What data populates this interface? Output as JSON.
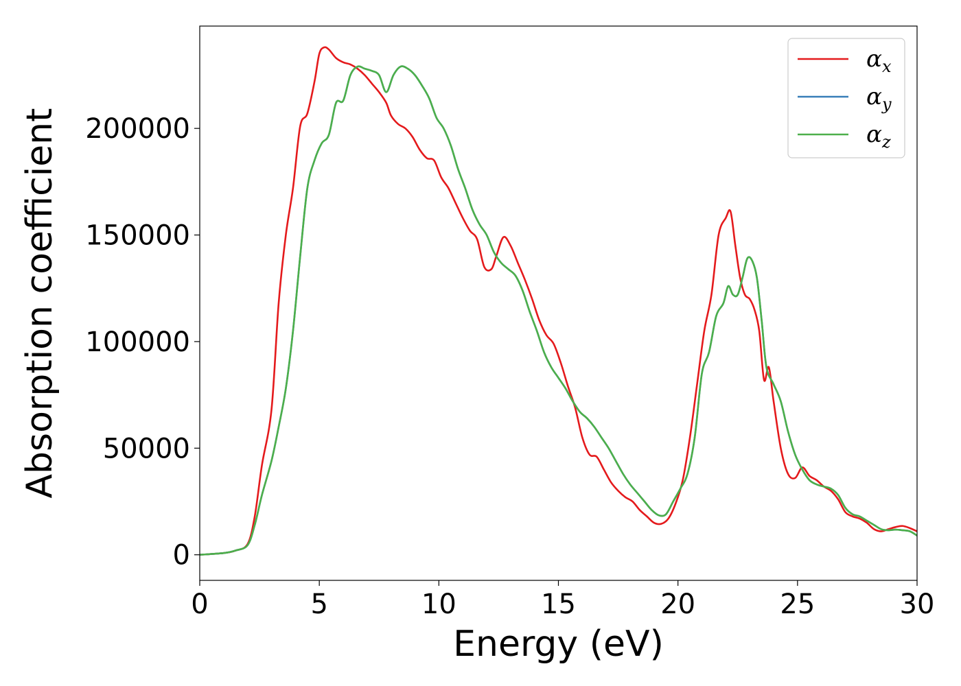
{
  "chart_data": {
    "type": "line",
    "xlabel": "Energy (eV)",
    "ylabel": "Absorption coefficient",
    "xlim": [
      0,
      30
    ],
    "ylim": [
      -12000,
      248000
    ],
    "xticks": [
      "0",
      "5",
      "10",
      "15",
      "20",
      "25",
      "30"
    ],
    "yticks": [
      "0",
      "50000",
      "100000",
      "150000",
      "200000"
    ],
    "grid": false,
    "legend_position": "top-right",
    "series": [
      {
        "name": "α_x",
        "symbol": "α",
        "subscript": "x",
        "color": "#e41a1c",
        "x": [
          0,
          1,
          1.5,
          2.0,
          2.3,
          2.6,
          3.0,
          3.3,
          3.6,
          3.9,
          4.2,
          4.5,
          4.8,
          5.0,
          5.2,
          5.4,
          5.7,
          6.0,
          6.3,
          6.6,
          6.9,
          7.2,
          7.5,
          7.8,
          8.0,
          8.3,
          8.6,
          8.9,
          9.2,
          9.5,
          9.8,
          10.1,
          10.4,
          10.7,
          11.0,
          11.3,
          11.6,
          11.9,
          12.2,
          12.4,
          12.7,
          13.0,
          13.3,
          13.6,
          13.9,
          14.2,
          14.5,
          14.8,
          15.1,
          15.4,
          15.7,
          16.0,
          16.3,
          16.6,
          16.9,
          17.2,
          17.5,
          17.8,
          18.1,
          18.4,
          18.7,
          19.0,
          19.3,
          19.6,
          19.9,
          20.2,
          20.5,
          20.8,
          21.1,
          21.4,
          21.7,
          22.0,
          22.2,
          22.4,
          22.6,
          22.8,
          23.0,
          23.2,
          23.4,
          23.6,
          23.8,
          24.0,
          24.3,
          24.6,
          24.9,
          25.2,
          25.5,
          25.8,
          26.1,
          26.4,
          26.7,
          27.0,
          27.3,
          27.6,
          27.9,
          28.2,
          28.5,
          28.8,
          29.1,
          29.4,
          29.7,
          30
        ],
        "y": [
          0,
          800,
          2000,
          5000,
          18000,
          42000,
          68000,
          118000,
          150000,
          172000,
          201000,
          207000,
          222000,
          235000,
          238000,
          237000,
          233000,
          231000,
          230000,
          228000,
          225000,
          221000,
          217000,
          212000,
          206000,
          202000,
          200000,
          196000,
          190000,
          186000,
          185000,
          177000,
          172000,
          165000,
          158000,
          152000,
          148000,
          135000,
          134000,
          140000,
          149000,
          145000,
          137000,
          129000,
          120000,
          110000,
          103000,
          99000,
          90000,
          79000,
          69000,
          55000,
          47000,
          46000,
          40000,
          34000,
          30000,
          27000,
          25000,
          21000,
          18000,
          15000,
          14500,
          17000,
          24000,
          35000,
          55000,
          80000,
          105000,
          122000,
          150000,
          158000,
          161000,
          145000,
          130000,
          122000,
          120000,
          115000,
          105000,
          82000,
          88000,
          72000,
          50000,
          38000,
          36000,
          41000,
          37000,
          35000,
          32000,
          30000,
          26000,
          20000,
          18000,
          17000,
          15000,
          12000,
          11000,
          12000,
          13000,
          13500,
          12500,
          11000
        ]
      },
      {
        "name": "α_y",
        "symbol": "α",
        "subscript": "y",
        "color": "#377eb8",
        "x": [
          0,
          1,
          1.5,
          2.0,
          2.3,
          2.6,
          3.0,
          3.3,
          3.6,
          3.9,
          4.2,
          4.5,
          4.8,
          5.1,
          5.4,
          5.7,
          6.0,
          6.3,
          6.6,
          6.9,
          7.2,
          7.5,
          7.8,
          8.1,
          8.4,
          8.7,
          9.0,
          9.3,
          9.6,
          9.9,
          10.2,
          10.5,
          10.8,
          11.1,
          11.4,
          11.7,
          12.0,
          12.3,
          12.6,
          12.9,
          13.2,
          13.5,
          13.8,
          14.1,
          14.4,
          14.7,
          15.0,
          15.3,
          15.6,
          15.9,
          16.2,
          16.5,
          16.8,
          17.1,
          17.4,
          17.7,
          18.0,
          18.3,
          18.6,
          18.9,
          19.2,
          19.5,
          19.8,
          20.1,
          20.4,
          20.7,
          21.0,
          21.3,
          21.6,
          21.9,
          22.1,
          22.3,
          22.5,
          22.7,
          22.9,
          23.1,
          23.3,
          23.5,
          23.7,
          24.0,
          24.3,
          24.6,
          24.9,
          25.2,
          25.5,
          25.8,
          26.1,
          26.4,
          26.7,
          27.0,
          27.3,
          27.6,
          27.9,
          28.2,
          28.5,
          28.8,
          29.1,
          29.4,
          29.7,
          30
        ],
        "y": [
          0,
          800,
          2000,
          4500,
          14000,
          28000,
          44000,
          60000,
          78000,
          105000,
          140000,
          172000,
          185000,
          193000,
          197000,
          212000,
          213000,
          225000,
          229000,
          228000,
          227000,
          225000,
          217000,
          225000,
          229000,
          228000,
          225000,
          220000,
          214000,
          205000,
          200000,
          192000,
          181000,
          172000,
          162000,
          155000,
          150000,
          142000,
          137000,
          134000,
          131000,
          124000,
          114000,
          105000,
          95000,
          88000,
          83000,
          78000,
          72000,
          67000,
          64000,
          60000,
          55000,
          50000,
          44000,
          38000,
          33000,
          29000,
          25000,
          21000,
          18500,
          19000,
          25000,
          31000,
          38000,
          55000,
          85000,
          95000,
          112000,
          118000,
          126000,
          122000,
          122000,
          130000,
          139000,
          138000,
          130000,
          110000,
          88000,
          80000,
          72000,
          58000,
          47000,
          40000,
          35000,
          33000,
          32000,
          31000,
          28000,
          22000,
          19000,
          18000,
          16000,
          14000,
          12000,
          11500,
          11800,
          11500,
          11000,
          9000
        ]
      },
      {
        "name": "α_z",
        "symbol": "α",
        "subscript": "z",
        "color": "#4daf4a",
        "x": [
          0,
          1,
          1.5,
          2.0,
          2.3,
          2.6,
          3.0,
          3.3,
          3.6,
          3.9,
          4.2,
          4.5,
          4.8,
          5.1,
          5.4,
          5.7,
          6.0,
          6.3,
          6.6,
          6.9,
          7.2,
          7.5,
          7.8,
          8.1,
          8.4,
          8.7,
          9.0,
          9.3,
          9.6,
          9.9,
          10.2,
          10.5,
          10.8,
          11.1,
          11.4,
          11.7,
          12.0,
          12.3,
          12.6,
          12.9,
          13.2,
          13.5,
          13.8,
          14.1,
          14.4,
          14.7,
          15.0,
          15.3,
          15.6,
          15.9,
          16.2,
          16.5,
          16.8,
          17.1,
          17.4,
          17.7,
          18.0,
          18.3,
          18.6,
          18.9,
          19.2,
          19.5,
          19.8,
          20.1,
          20.4,
          20.7,
          21.0,
          21.3,
          21.6,
          21.9,
          22.1,
          22.3,
          22.5,
          22.7,
          22.9,
          23.1,
          23.3,
          23.5,
          23.7,
          24.0,
          24.3,
          24.6,
          24.9,
          25.2,
          25.5,
          25.8,
          26.1,
          26.4,
          26.7,
          27.0,
          27.3,
          27.6,
          27.9,
          28.2,
          28.5,
          28.8,
          29.1,
          29.4,
          29.7,
          30
        ],
        "y": [
          0,
          800,
          2000,
          4500,
          14000,
          28000,
          44000,
          60000,
          78000,
          105000,
          140000,
          172000,
          185000,
          193000,
          197000,
          212000,
          213000,
          225000,
          229000,
          228000,
          227000,
          225000,
          217000,
          225000,
          229000,
          228000,
          225000,
          220000,
          214000,
          205000,
          200000,
          192000,
          181000,
          172000,
          162000,
          155000,
          150000,
          142000,
          137000,
          134000,
          131000,
          124000,
          114000,
          105000,
          95000,
          88000,
          83000,
          78000,
          72000,
          67000,
          64000,
          60000,
          55000,
          50000,
          44000,
          38000,
          33000,
          29000,
          25000,
          21000,
          18500,
          19000,
          25000,
          31000,
          38000,
          55000,
          85000,
          95000,
          112000,
          118000,
          126000,
          122000,
          122000,
          130000,
          139000,
          138000,
          130000,
          110000,
          88000,
          80000,
          72000,
          58000,
          47000,
          40000,
          35000,
          33000,
          32000,
          31000,
          28000,
          22000,
          19000,
          18000,
          16000,
          14000,
          12000,
          11500,
          11800,
          11500,
          11000,
          9000
        ]
      }
    ]
  }
}
